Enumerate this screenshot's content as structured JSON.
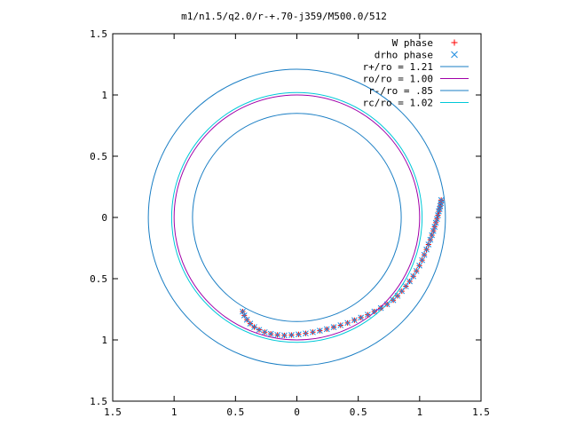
{
  "chart_data": {
    "type": "scatter",
    "title": "m1/n1.5/q2.0/r-+.70-j359/M500.0/512",
    "xlim": [
      -1.5,
      1.5
    ],
    "ylim": [
      -1.5,
      1.5
    ],
    "xticks": [
      -1.5,
      -1,
      -0.5,
      0,
      0.5,
      1,
      1.5
    ],
    "yticks": [
      -1.5,
      -1,
      -0.5,
      0,
      0.5,
      1,
      1.5
    ],
    "xtick_labels": [
      "1.5",
      "1",
      "0.5",
      "0",
      "0.5",
      "1",
      "1.5"
    ],
    "ytick_labels": [
      "1.5",
      "1",
      "0.5",
      "0",
      "0.5",
      "1",
      "1.5"
    ],
    "grid": false,
    "legend_position": "top-right",
    "series": [
      {
        "name": "W phase",
        "kind": "points",
        "marker": "plus",
        "color": "#ff0000",
        "points": [
          [
            1.176,
            0.142
          ],
          [
            1.173,
            0.117
          ],
          [
            1.168,
            0.093
          ],
          [
            1.163,
            0.07
          ],
          [
            1.156,
            0.05
          ],
          [
            1.149,
            0.018
          ],
          [
            1.141,
            -0.013
          ],
          [
            1.132,
            -0.043
          ],
          [
            1.122,
            -0.077
          ],
          [
            1.112,
            -0.11
          ],
          [
            1.1,
            -0.145
          ],
          [
            1.087,
            -0.182
          ],
          [
            1.072,
            -0.221
          ],
          [
            1.056,
            -0.262
          ],
          [
            1.038,
            -0.305
          ],
          [
            1.02,
            -0.349
          ],
          [
            0.998,
            -0.393
          ],
          [
            0.974,
            -0.437
          ],
          [
            0.948,
            -0.48
          ],
          [
            0.919,
            -0.522
          ],
          [
            0.888,
            -0.562
          ],
          [
            0.855,
            -0.602
          ],
          [
            0.82,
            -0.64
          ],
          [
            0.785,
            -0.676
          ],
          [
            0.735,
            -0.709
          ],
          [
            0.684,
            -0.74
          ],
          [
            0.631,
            -0.768
          ],
          [
            0.577,
            -0.794
          ],
          [
            0.522,
            -0.818
          ],
          [
            0.469,
            -0.839
          ],
          [
            0.413,
            -0.861
          ],
          [
            0.356,
            -0.88
          ],
          [
            0.3,
            -0.896
          ],
          [
            0.244,
            -0.912
          ],
          [
            0.187,
            -0.925
          ],
          [
            0.13,
            -0.937
          ],
          [
            0.072,
            -0.947
          ],
          [
            0.014,
            -0.955
          ],
          [
            -0.044,
            -0.96
          ],
          [
            -0.102,
            -0.963
          ],
          [
            -0.158,
            -0.959
          ],
          [
            -0.212,
            -0.95
          ],
          [
            -0.262,
            -0.937
          ],
          [
            -0.307,
            -0.918
          ],
          [
            -0.347,
            -0.895
          ],
          [
            -0.38,
            -0.867
          ],
          [
            -0.407,
            -0.835
          ],
          [
            -0.428,
            -0.8
          ],
          [
            -0.441,
            -0.768
          ]
        ]
      },
      {
        "name": "drho phase",
        "kind": "points",
        "marker": "cross",
        "color": "#1f8ce0",
        "points": [
          [
            1.176,
            0.142
          ],
          [
            1.173,
            0.117
          ],
          [
            1.168,
            0.093
          ],
          [
            1.163,
            0.07
          ],
          [
            1.156,
            0.05
          ],
          [
            1.149,
            0.018
          ],
          [
            1.141,
            -0.013
          ],
          [
            1.132,
            -0.043
          ],
          [
            1.122,
            -0.077
          ],
          [
            1.112,
            -0.11
          ],
          [
            1.1,
            -0.145
          ],
          [
            1.087,
            -0.182
          ],
          [
            1.072,
            -0.221
          ],
          [
            1.056,
            -0.262
          ],
          [
            1.038,
            -0.305
          ],
          [
            1.02,
            -0.349
          ],
          [
            0.998,
            -0.393
          ],
          [
            0.974,
            -0.437
          ],
          [
            0.948,
            -0.48
          ],
          [
            0.919,
            -0.522
          ],
          [
            0.888,
            -0.562
          ],
          [
            0.855,
            -0.602
          ],
          [
            0.82,
            -0.64
          ],
          [
            0.785,
            -0.676
          ],
          [
            0.735,
            -0.709
          ],
          [
            0.684,
            -0.74
          ],
          [
            0.631,
            -0.768
          ],
          [
            0.577,
            -0.794
          ],
          [
            0.522,
            -0.818
          ],
          [
            0.469,
            -0.839
          ],
          [
            0.413,
            -0.861
          ],
          [
            0.356,
            -0.88
          ],
          [
            0.3,
            -0.896
          ],
          [
            0.244,
            -0.912
          ],
          [
            0.187,
            -0.925
          ],
          [
            0.13,
            -0.937
          ],
          [
            0.072,
            -0.947
          ],
          [
            0.014,
            -0.955
          ],
          [
            -0.044,
            -0.96
          ],
          [
            -0.102,
            -0.963
          ],
          [
            -0.158,
            -0.959
          ],
          [
            -0.212,
            -0.95
          ],
          [
            -0.262,
            -0.937
          ],
          [
            -0.307,
            -0.918
          ],
          [
            -0.347,
            -0.895
          ],
          [
            -0.38,
            -0.867
          ],
          [
            -0.407,
            -0.835
          ],
          [
            -0.428,
            -0.8
          ],
          [
            -0.441,
            -0.768
          ]
        ]
      },
      {
        "name": "r+/ro = 1.21",
        "kind": "circle",
        "radius": 1.21,
        "color": "#1a7ec4"
      },
      {
        "name": "ro/ro = 1.00",
        "kind": "circle",
        "radius": 1.0,
        "color": "#a000a8"
      },
      {
        "name": "r-/ro = .85",
        "kind": "circle",
        "radius": 0.85,
        "color": "#1a7ec4"
      },
      {
        "name": "rc/ro = 1.02",
        "kind": "circle",
        "radius": 1.02,
        "color": "#00c8d8"
      }
    ]
  }
}
